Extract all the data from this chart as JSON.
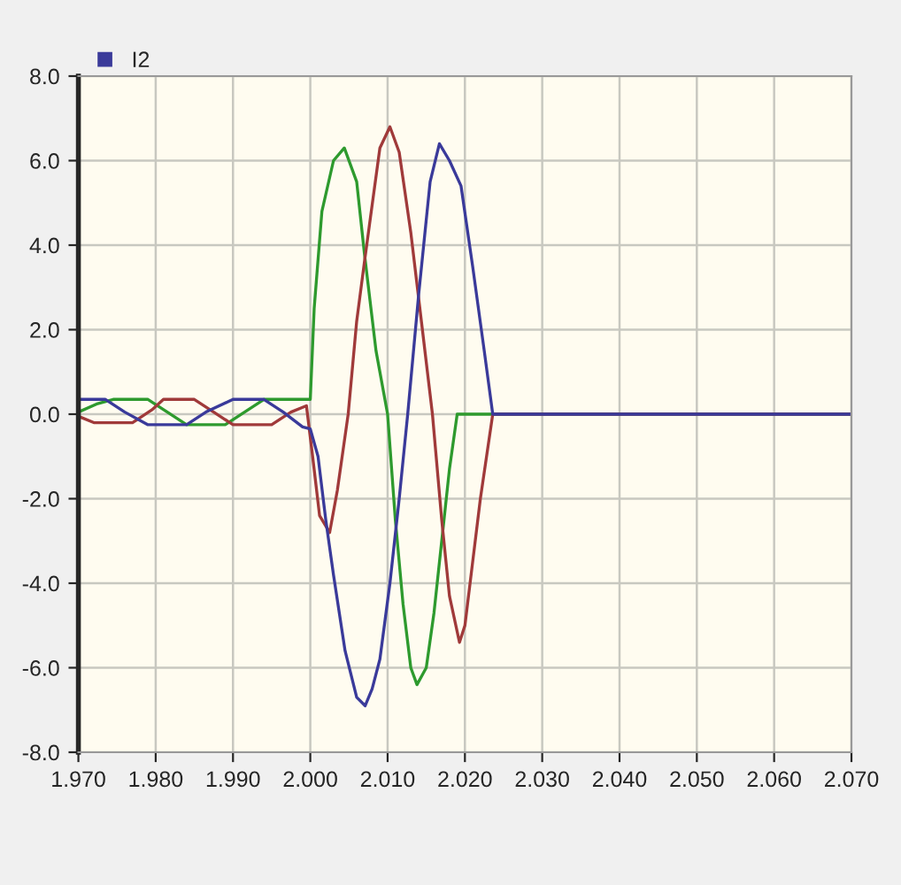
{
  "chart_data": {
    "type": "line",
    "series": [
      {
        "color": "#2e9a2e",
        "x": [
          1.97,
          1.9725,
          1.9745,
          1.979,
          1.9815,
          1.984,
          1.989,
          1.9915,
          1.994,
          2.0,
          2.0005,
          2.0015,
          2.003,
          2.0044,
          2.006,
          2.007,
          2.0085,
          2.01,
          2.011,
          2.012,
          2.013,
          2.0138,
          2.015,
          2.016,
          2.017,
          2.018,
          2.019,
          2.025,
          2.07
        ],
        "values": [
          0.05,
          0.25,
          0.35,
          0.35,
          0.05,
          -0.25,
          -0.25,
          0.05,
          0.35,
          0.35,
          2.5,
          4.8,
          6.0,
          6.3,
          5.5,
          3.8,
          1.5,
          0.0,
          -2.5,
          -4.5,
          -6.0,
          -6.4,
          -6.0,
          -4.7,
          -3.0,
          -1.3,
          0.0,
          0.0,
          0.0
        ]
      },
      {
        "color": "#a03a3a",
        "x": [
          1.97,
          1.972,
          1.977,
          1.9795,
          1.981,
          1.985,
          1.9875,
          1.99,
          1.995,
          1.9975,
          1.9995,
          2.0003,
          2.0012,
          2.0025,
          2.0035,
          2.0049,
          2.006,
          2.007,
          2.009,
          2.0103,
          2.0115,
          2.013,
          2.0145,
          2.0158,
          2.017,
          2.018,
          2.0193,
          2.02,
          2.021,
          2.022,
          2.0236,
          2.07
        ],
        "values": [
          -0.05,
          -0.2,
          -0.2,
          0.1,
          0.35,
          0.35,
          0.05,
          -0.25,
          -0.25,
          0.05,
          0.2,
          -1.0,
          -2.4,
          -2.8,
          -1.8,
          0.0,
          2.2,
          3.6,
          6.3,
          6.8,
          6.2,
          4.3,
          2.0,
          0.0,
          -2.5,
          -4.3,
          -5.4,
          -5.0,
          -3.5,
          -2.0,
          0.0,
          0.0
        ]
      },
      {
        "name": "I2",
        "color": "#3a3a9a",
        "x": [
          1.97,
          1.9735,
          1.976,
          1.979,
          1.984,
          1.9865,
          1.99,
          1.994,
          1.9965,
          1.999,
          2.0,
          2.001,
          2.002,
          2.003,
          2.0045,
          2.006,
          2.0071,
          2.008,
          2.009,
          2.0103,
          2.0115,
          2.0126,
          2.014,
          2.0155,
          2.0167,
          2.018,
          2.0195,
          2.021,
          2.0225,
          2.0236,
          2.07
        ],
        "values": [
          0.35,
          0.35,
          0.05,
          -0.25,
          -0.25,
          0.05,
          0.35,
          0.35,
          0.05,
          -0.3,
          -0.35,
          -1.0,
          -2.5,
          -3.8,
          -5.6,
          -6.7,
          -6.9,
          -6.5,
          -5.8,
          -4.0,
          -2.0,
          0.0,
          2.8,
          5.5,
          6.4,
          6.0,
          5.4,
          3.5,
          1.5,
          0.0,
          0.0
        ]
      }
    ],
    "xlim": [
      1.97,
      2.07
    ],
    "xticks": [
      {
        "value": 1.97,
        "label": "1.970"
      },
      {
        "value": 1.98,
        "label": "1.980"
      },
      {
        "value": 1.99,
        "label": "1.990"
      },
      {
        "value": 2.0,
        "label": "2.000"
      },
      {
        "value": 2.01,
        "label": "2.010"
      },
      {
        "value": 2.02,
        "label": "2.020"
      },
      {
        "value": 2.03,
        "label": "2.030"
      },
      {
        "value": 2.04,
        "label": "2.040"
      },
      {
        "value": 2.05,
        "label": "2.050"
      },
      {
        "value": 2.06,
        "label": "2.060"
      },
      {
        "value": 2.07,
        "label": "2.070"
      }
    ],
    "ylim": [
      -8,
      8
    ],
    "yticks": [
      {
        "value": -8,
        "label": "-8.0"
      },
      {
        "value": -6,
        "label": "-6.0"
      },
      {
        "value": -4,
        "label": "-4.0"
      },
      {
        "value": -2,
        "label": "-2.0"
      },
      {
        "value": 0,
        "label": "0.0"
      },
      {
        "value": 2,
        "label": "2.0"
      },
      {
        "value": 4,
        "label": "4.0"
      },
      {
        "value": 6,
        "label": "6.0"
      },
      {
        "value": 8,
        "label": "8.0"
      }
    ],
    "grid": true,
    "legend": "top left"
  }
}
